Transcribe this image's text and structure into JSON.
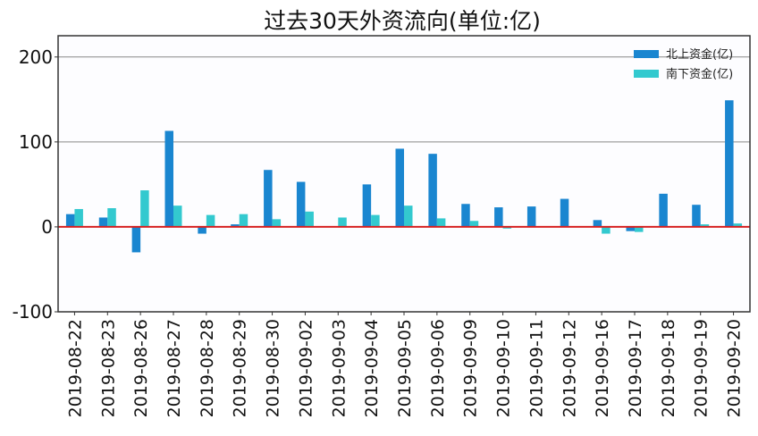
{
  "chart_data": {
    "type": "bar",
    "title": "过去30天外资流向(单位:亿)",
    "xlabel": "",
    "ylabel": "",
    "ylim": [
      -100,
      225
    ],
    "yticks": [
      200,
      100,
      0,
      -100
    ],
    "categories": [
      "2019-08-22",
      "2019-08-23",
      "2019-08-26",
      "2019-08-27",
      "2019-08-28",
      "2019-08-29",
      "2019-08-30",
      "2019-09-02",
      "2019-09-03",
      "2019-09-04",
      "2019-09-05",
      "2019-09-06",
      "2019-09-09",
      "2019-09-10",
      "2019-09-11",
      "2019-09-12",
      "2019-09-16",
      "2019-09-17",
      "2019-09-18",
      "2019-09-19",
      "2019-09-20"
    ],
    "series": [
      {
        "name": "北上资金(亿)",
        "color": "#1a86d0",
        "values": [
          15,
          11,
          -30,
          113,
          -8,
          3,
          67,
          53,
          0,
          50,
          92,
          86,
          27,
          23,
          24,
          33,
          8,
          -5,
          39,
          26,
          149
        ]
      },
      {
        "name": "南下资金(亿)",
        "color": "#33c9cf",
        "values": [
          21,
          22,
          43,
          25,
          14,
          15,
          9,
          18,
          11,
          14,
          25,
          10,
          7,
          -2,
          0,
          0,
          -8,
          -6,
          0,
          3,
          4
        ]
      }
    ],
    "grid": true,
    "zero_line_color": "#d62020",
    "legend": "top-right"
  }
}
